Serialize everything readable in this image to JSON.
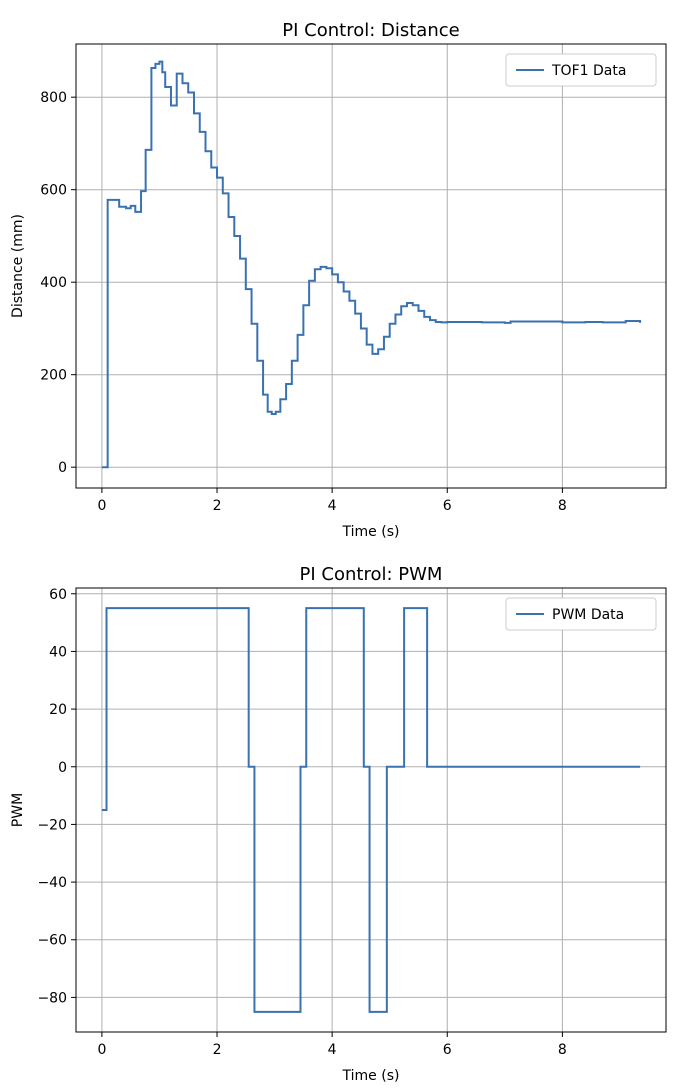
{
  "chart_data": [
    {
      "type": "line",
      "title": "PI Control: Distance",
      "xlabel": "Time (s)",
      "ylabel": "Distance (mm)",
      "xlim": [
        -0.45,
        9.8
      ],
      "ylim": [
        -45,
        915
      ],
      "xticks": [
        0,
        2,
        4,
        6,
        8
      ],
      "yticks": [
        0,
        200,
        400,
        600,
        800
      ],
      "grid": true,
      "legend": "top-right",
      "colors": {
        "series": "#3a72b0"
      },
      "series": [
        {
          "name": "TOF1 Data",
          "step": true,
          "x": [
            0,
            0.08,
            0.1,
            0.3,
            0.42,
            0.5,
            0.58,
            0.68,
            0.76,
            0.86,
            0.93,
            1.0,
            1.05,
            1.1,
            1.2,
            1.3,
            1.4,
            1.5,
            1.6,
            1.7,
            1.8,
            1.9,
            2.0,
            2.1,
            2.2,
            2.3,
            2.4,
            2.5,
            2.6,
            2.7,
            2.8,
            2.88,
            2.95,
            3.02,
            3.1,
            3.2,
            3.3,
            3.4,
            3.5,
            3.6,
            3.7,
            3.8,
            3.9,
            4.0,
            4.1,
            4.2,
            4.3,
            4.4,
            4.5,
            4.6,
            4.7,
            4.8,
            4.9,
            5.0,
            5.1,
            5.2,
            5.3,
            5.4,
            5.5,
            5.6,
            5.7,
            5.8,
            5.9,
            6.0,
            6.4,
            6.6,
            7.0,
            7.1,
            7.7,
            8.0,
            8.4,
            8.7,
            9.1,
            9.35
          ],
          "y": [
            0,
            0,
            578,
            563,
            560,
            565,
            552,
            597,
            686,
            863,
            872,
            877,
            854,
            822,
            782,
            851,
            830,
            810,
            765,
            725,
            683,
            648,
            626,
            592,
            541,
            500,
            451,
            385,
            310,
            230,
            157,
            120,
            115,
            120,
            147,
            180,
            230,
            286,
            350,
            403,
            428,
            433,
            430,
            417,
            400,
            380,
            360,
            332,
            300,
            265,
            245,
            255,
            282,
            310,
            330,
            348,
            355,
            350,
            338,
            325,
            318,
            314,
            313,
            314,
            314,
            313,
            312,
            315,
            315,
            313,
            314,
            313,
            316,
            312
          ]
        }
      ]
    },
    {
      "type": "line",
      "title": "PI Control: PWM",
      "xlabel": "Time (s)",
      "ylabel": "PWM",
      "xlim": [
        -0.45,
        9.8
      ],
      "ylim": [
        -92,
        62
      ],
      "xticks": [
        0,
        2,
        4,
        6,
        8
      ],
      "yticks": [
        60,
        40,
        20,
        0,
        -20,
        -40,
        -60,
        -80
      ],
      "grid": true,
      "legend": "top-right",
      "colors": {
        "series": "#3a72b0"
      },
      "series": [
        {
          "name": "PWM Data",
          "step": true,
          "x": [
            0,
            0.08,
            2.55,
            2.65,
            3.45,
            3.55,
            4.55,
            4.65,
            4.95,
            5.25,
            5.65,
            9.35
          ],
          "y": [
            -15,
            55,
            0,
            -85,
            0,
            55,
            0,
            -85,
            0,
            55,
            0,
            0
          ]
        }
      ]
    }
  ]
}
